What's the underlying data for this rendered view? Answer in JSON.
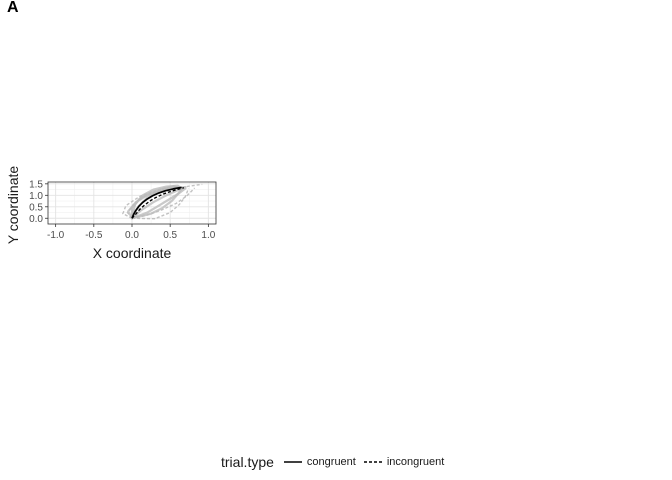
{
  "panel_label": "A",
  "chart_data": {
    "type": "line",
    "title": "",
    "xlabel": "X coordinate",
    "ylabel": "Y coordinate",
    "xlim": [
      -1.1,
      1.1
    ],
    "ylim": [
      -0.25,
      1.58
    ],
    "xticks": [
      -1.0,
      -0.5,
      0.0,
      0.5,
      1.0
    ],
    "xtick_labels": [
      "-1.0",
      "-0.5",
      "0.0",
      "0.5",
      "1.0"
    ],
    "yticks": [
      0.0,
      0.5,
      1.0,
      1.5
    ],
    "ytick_labels": [
      "0.0",
      "0.5",
      "1.0",
      "1.5"
    ],
    "grid": true,
    "legend_title": "trial.type",
    "legend_position": "bottom",
    "series": [
      {
        "name": "congruent",
        "style": "solid",
        "color": "#000000",
        "x": [
          0.0,
          0.02,
          0.05,
          0.09,
          0.14,
          0.2,
          0.27,
          0.35,
          0.44,
          0.54,
          0.65
        ],
        "y": [
          0.0,
          0.16,
          0.34,
          0.52,
          0.69,
          0.84,
          0.98,
          1.1,
          1.2,
          1.28,
          1.35
        ]
      },
      {
        "name": "incongruent",
        "style": "dashed",
        "color": "#000000",
        "x": [
          0.0,
          0.05,
          0.1,
          0.16,
          0.23,
          0.31,
          0.4,
          0.5,
          0.6,
          0.68
        ],
        "y": [
          0.0,
          0.18,
          0.38,
          0.56,
          0.74,
          0.9,
          1.04,
          1.16,
          1.26,
          1.33
        ]
      }
    ],
    "background_trials": {
      "color": "#bbbbbb",
      "solid": [
        {
          "x": [
            0.0,
            0.08,
            0.2,
            0.35,
            0.5,
            0.62
          ],
          "y": [
            0.0,
            0.5,
            0.9,
            1.15,
            1.3,
            1.38
          ]
        },
        {
          "x": [
            0.0,
            0.12,
            0.28,
            0.45,
            0.6,
            0.7
          ],
          "y": [
            0.0,
            0.35,
            0.7,
            1.0,
            1.22,
            1.36
          ]
        },
        {
          "x": [
            0.0,
            -0.05,
            0.05,
            0.2,
            0.4,
            0.58
          ],
          "y": [
            0.0,
            0.3,
            0.7,
            1.0,
            1.22,
            1.37
          ]
        },
        {
          "x": [
            0.0,
            0.2,
            0.35,
            0.5,
            0.62,
            0.7
          ],
          "y": [
            0.0,
            0.25,
            0.55,
            0.85,
            1.1,
            1.3
          ]
        },
        {
          "x": [
            0.0,
            0.04,
            0.14,
            0.28,
            0.45,
            0.6
          ],
          "y": [
            0.0,
            0.6,
            1.0,
            1.25,
            1.38,
            1.42
          ]
        },
        {
          "x": [
            0.0,
            0.25,
            0.4,
            0.52,
            0.6,
            0.66
          ],
          "y": [
            0.0,
            0.2,
            0.45,
            0.75,
            1.05,
            1.33
          ]
        },
        {
          "x": [
            0.0,
            0.0,
            0.1,
            0.25,
            0.42,
            0.56
          ],
          "y": [
            0.0,
            0.45,
            0.85,
            1.12,
            1.3,
            1.4
          ]
        }
      ],
      "dashed": [
        {
          "x": [
            0.0,
            -0.12,
            -0.08,
            0.1,
            0.35,
            0.62
          ],
          "y": [
            0.0,
            0.2,
            0.55,
            0.95,
            1.25,
            1.4
          ]
        },
        {
          "x": [
            0.0,
            0.3,
            0.5,
            0.62,
            0.7,
            0.74
          ],
          "y": [
            0.0,
            -0.02,
            0.25,
            0.6,
            0.95,
            1.3
          ]
        },
        {
          "x": [
            0.0,
            0.1,
            0.25,
            0.45,
            0.65,
            0.92
          ],
          "y": [
            0.0,
            0.4,
            0.8,
            1.15,
            1.35,
            1.48
          ]
        },
        {
          "x": [
            0.0,
            0.18,
            0.38,
            0.58,
            0.72,
            0.82
          ],
          "y": [
            0.0,
            0.12,
            0.35,
            0.65,
            0.98,
            1.32
          ]
        },
        {
          "x": [
            0.0,
            -0.06,
            0.02,
            0.18,
            0.38,
            0.55
          ],
          "y": [
            0.0,
            0.25,
            0.6,
            0.98,
            1.25,
            1.42
          ]
        }
      ]
    }
  }
}
